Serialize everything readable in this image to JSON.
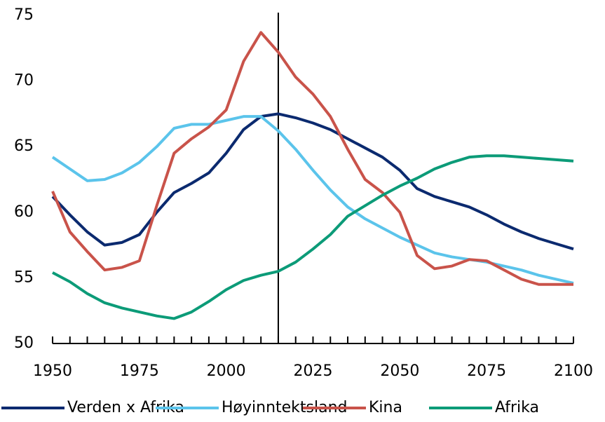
{
  "chart_data": {
    "type": "line",
    "x": [
      1950,
      1955,
      1960,
      1965,
      1970,
      1975,
      1980,
      1985,
      1990,
      1995,
      2000,
      2005,
      2010,
      2015,
      2020,
      2025,
      2030,
      2035,
      2040,
      2045,
      2050,
      2055,
      2060,
      2065,
      2070,
      2075,
      2080,
      2085,
      2090,
      2095,
      2100
    ],
    "series": [
      {
        "name": "Verden x Afrika",
        "color": "#0b2a6f",
        "values": [
          61.2,
          59.8,
          58.5,
          57.5,
          57.7,
          58.3,
          60.0,
          61.5,
          62.2,
          63.0,
          64.5,
          66.3,
          67.3,
          67.5,
          67.2,
          66.8,
          66.3,
          65.6,
          64.9,
          64.2,
          63.2,
          61.8,
          61.2,
          60.8,
          60.4,
          59.8,
          59.1,
          58.5,
          58.0,
          57.6,
          57.2
        ]
      },
      {
        "name": "Høyinntektsland",
        "color": "#5bc4eb",
        "values": [
          64.2,
          63.3,
          62.4,
          62.5,
          63.0,
          63.8,
          65.0,
          66.4,
          66.7,
          66.7,
          67.0,
          67.3,
          67.3,
          66.2,
          64.8,
          63.2,
          61.7,
          60.4,
          59.5,
          58.8,
          58.1,
          57.5,
          56.9,
          56.6,
          56.4,
          56.2,
          55.9,
          55.6,
          55.2,
          54.9,
          54.6
        ]
      },
      {
        "name": "Kina",
        "color": "#c9534a",
        "values": [
          61.6,
          58.5,
          57.0,
          55.6,
          55.8,
          56.3,
          60.5,
          64.5,
          65.6,
          66.5,
          67.8,
          71.5,
          73.7,
          72.2,
          70.3,
          69.0,
          67.3,
          64.8,
          62.5,
          61.5,
          60.0,
          56.7,
          55.7,
          55.9,
          56.4,
          56.3,
          55.6,
          54.9,
          54.5,
          54.5,
          54.5
        ]
      },
      {
        "name": "Afrika",
        "color": "#0c9b78",
        "values": [
          55.4,
          54.7,
          53.8,
          53.1,
          52.7,
          52.4,
          52.1,
          51.9,
          52.4,
          53.2,
          54.1,
          54.8,
          55.2,
          55.5,
          56.2,
          57.2,
          58.3,
          59.7,
          60.5,
          61.3,
          62.0,
          62.6,
          63.3,
          63.8,
          64.2,
          64.3,
          64.3,
          64.2,
          64.1,
          64.0,
          63.9
        ]
      }
    ],
    "xlim": [
      1950,
      2100
    ],
    "xticks": [
      1950,
      1975,
      2000,
      2025,
      2050,
      2075,
      2100
    ],
    "ylim": [
      50,
      75
    ],
    "yticks": [
      50,
      55,
      60,
      65,
      70,
      75
    ],
    "vline": 2015,
    "grid": false,
    "legend": "bottom"
  }
}
